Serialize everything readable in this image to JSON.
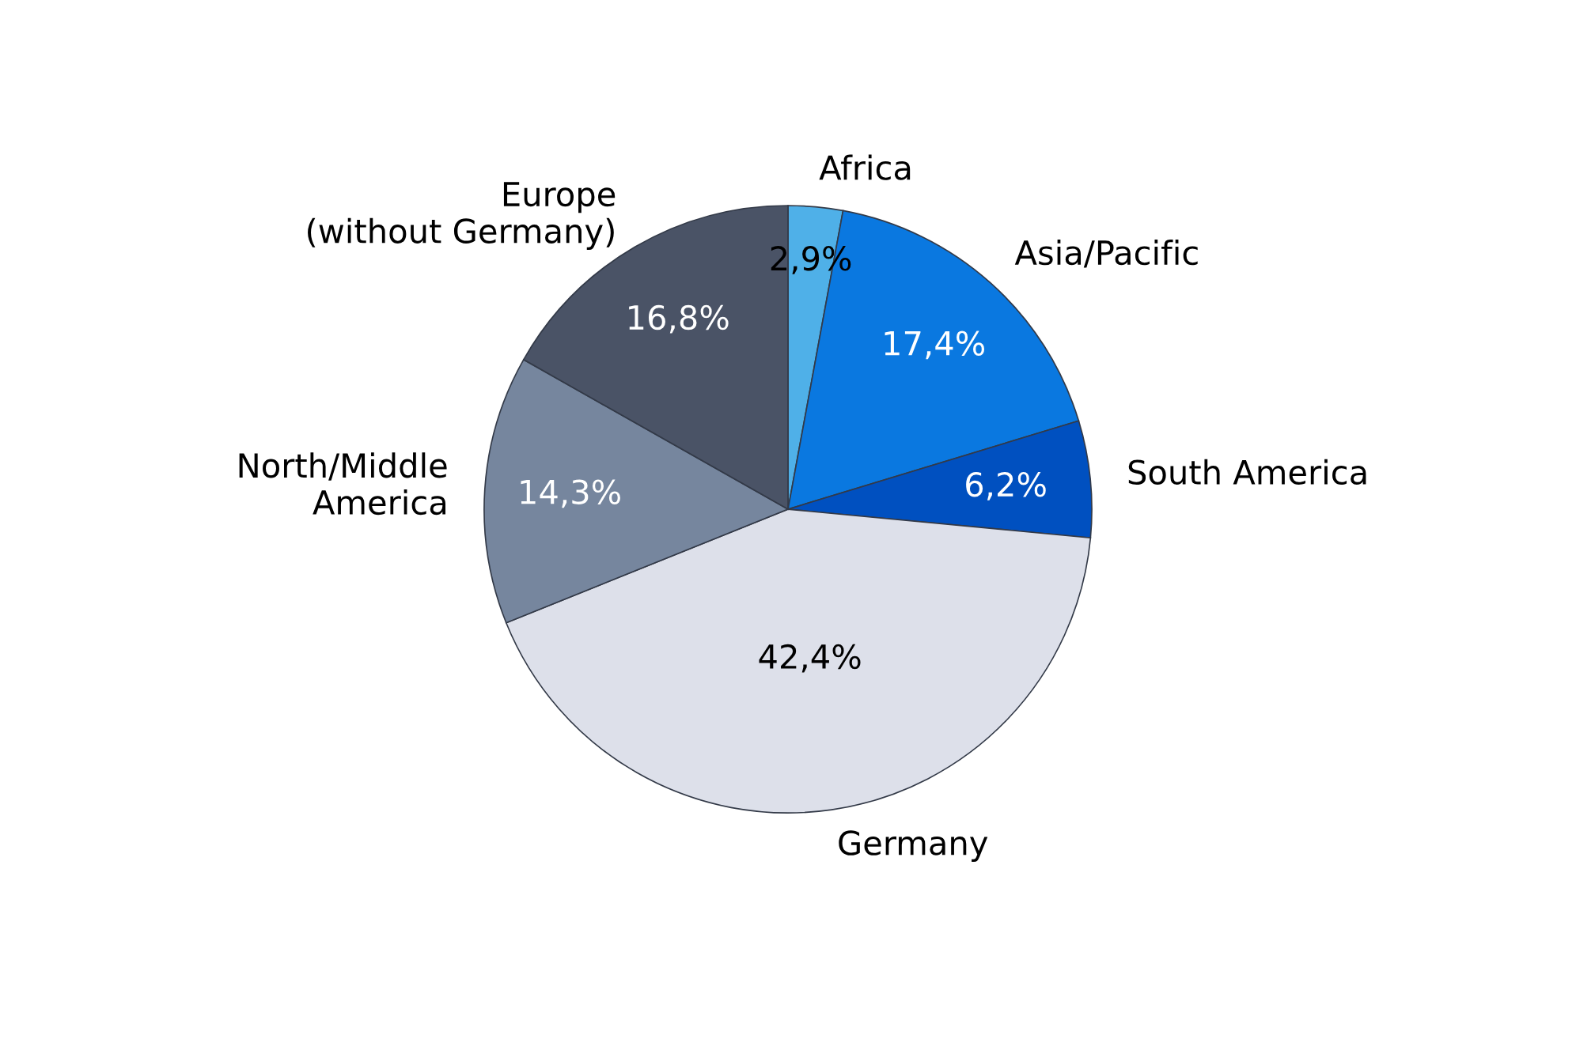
{
  "chart_data": {
    "type": "pie",
    "categories": [
      "Africa",
      "Asia/Pacific",
      "South America",
      "Germany",
      "North/Middle\nAmerica",
      "Europe\n(without Germany)"
    ],
    "values": [
      2.9,
      17.4,
      6.2,
      42.4,
      14.3,
      16.8
    ],
    "value_labels": [
      "2,9%",
      "17,4%",
      "6,2%",
      "42,4%",
      "14,3%",
      "16,8%"
    ],
    "colors": [
      "#4fb0e8",
      "#0a78e0",
      "#0050c0",
      "#dde0ea",
      "#76869e",
      "#4a5366"
    ]
  }
}
